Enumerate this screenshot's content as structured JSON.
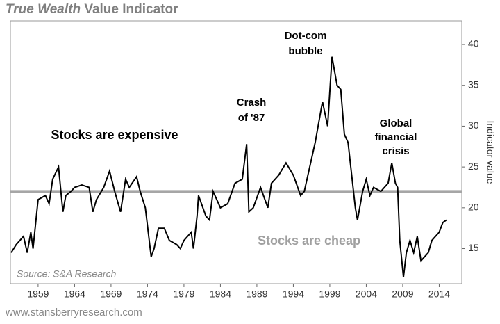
{
  "chart_data": {
    "type": "line",
    "title_parts": [
      "True Wealth",
      "Value Indicator"
    ],
    "y_label": "Indicator value",
    "source": "Source: S&A Research",
    "footer": "www.stansberryresearch.com",
    "annotations": [
      "Dot-com",
      "bubble",
      "Crash",
      "of '87",
      "Global",
      "financial",
      "crisis",
      "Stocks are expensive",
      "Stocks are cheap"
    ],
    "reference_line": {
      "value": 22,
      "color": "#a6a6a6"
    },
    "x": [
      1955.3,
      1956,
      1957,
      1957.5,
      1958,
      1958.3,
      1959,
      1960,
      1960.5,
      1961,
      1961.8,
      1962.4,
      1962.8,
      1963.5,
      1964,
      1965,
      1966,
      1966.5,
      1967,
      1968,
      1968.8,
      1969.5,
      1970.3,
      1971,
      1971.5,
      1972.5,
      1973,
      1973.7,
      1974.5,
      1974.9,
      1975.5,
      1976.3,
      1977,
      1978,
      1978.5,
      1979,
      1980,
      1980.3,
      1980.8,
      1981,
      1982,
      1982.5,
      1983,
      1984,
      1985,
      1986,
      1987,
      1987.6,
      1987.9,
      1988.5,
      1989.5,
      1990.5,
      1991,
      1992,
      1993,
      1994,
      1995,
      1995.5,
      1996,
      1997,
      1998,
      1998.7,
      1999.3,
      2000,
      2000.5,
      2001,
      2001.5,
      2002.5,
      2002.8,
      2003.5,
      2004,
      2004.5,
      2005,
      2006,
      2007,
      2007.5,
      2008,
      2008.3,
      2008.6,
      2009.1,
      2009.5,
      2010,
      2010.5,
      2011,
      2011.5,
      2012,
      2012.5,
      2013,
      2014,
      2014.5,
      2015
    ],
    "series": [
      {
        "name": "Indicator",
        "color": "#000000",
        "values": [
          14.5,
          15.5,
          16.5,
          14.5,
          17,
          15,
          21,
          21.5,
          20.5,
          23.5,
          25,
          19.5,
          21.5,
          22,
          22.5,
          22.8,
          22.5,
          19.5,
          21,
          22.5,
          24.5,
          22,
          19.5,
          23.5,
          22.5,
          23.8,
          22,
          20,
          14,
          15,
          17.5,
          17.5,
          16,
          15.5,
          15,
          16,
          17,
          15,
          19,
          21.5,
          19,
          18.5,
          22,
          20,
          20.5,
          23,
          23.5,
          27.8,
          19.5,
          20,
          22.5,
          20,
          23,
          24,
          25.5,
          24,
          21.5,
          22,
          24,
          28,
          33,
          30,
          38.5,
          35,
          34.5,
          29,
          28,
          20,
          18.5,
          22,
          23.5,
          21.5,
          22.5,
          22,
          23,
          25.5,
          23,
          22.5,
          16,
          11.5,
          14.5,
          16,
          14.5,
          16.5,
          13.5,
          14,
          14.5,
          16,
          17,
          18.2,
          18.5
        ]
      }
    ],
    "xlim": [
      1955.2,
      2017.1
    ],
    "xticks": [
      1959,
      1964,
      1969,
      1974,
      1979,
      1984,
      1989,
      1994,
      1999,
      2004,
      2009,
      2014
    ],
    "ylim": [
      10.7,
      42.9
    ],
    "yticks": [
      15,
      20,
      25,
      30,
      35,
      40
    ]
  }
}
